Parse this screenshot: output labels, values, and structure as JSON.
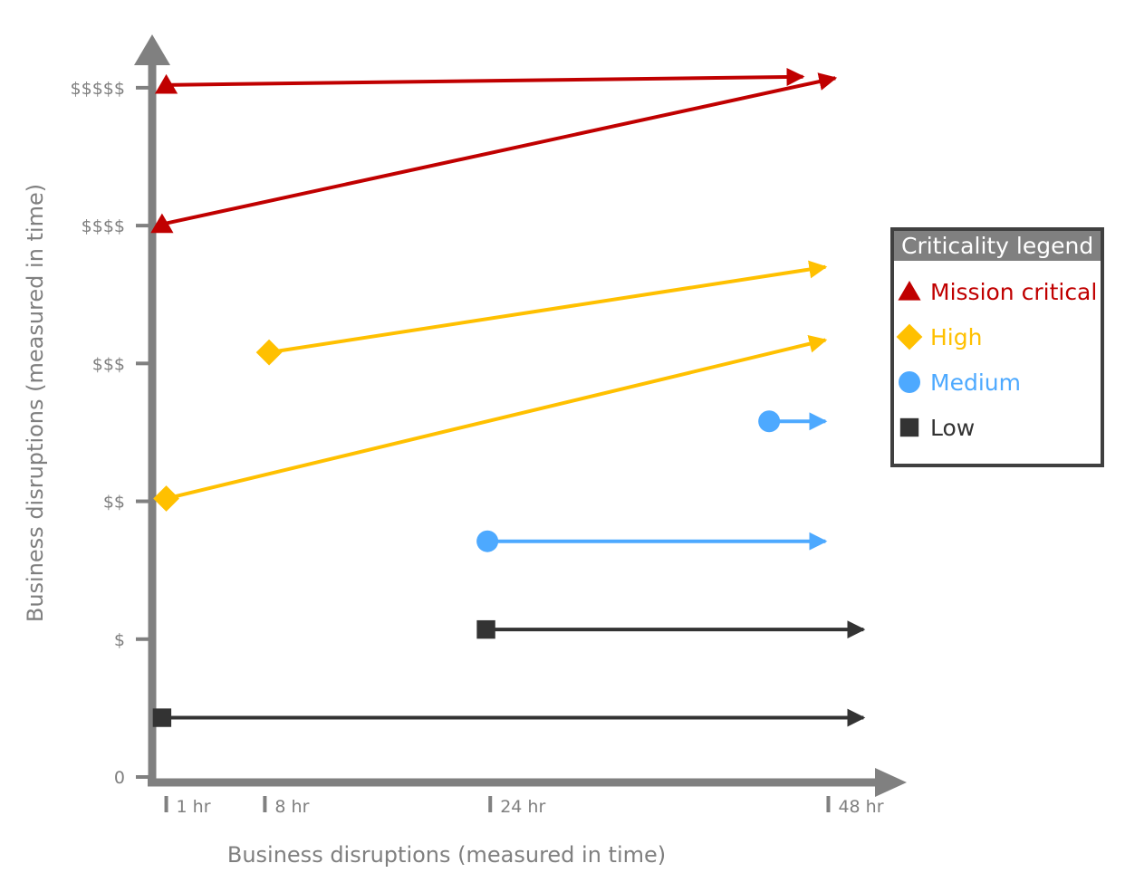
{
  "chart_data": {
    "type": "line",
    "xlabel": "Business disruptions (measured in time)",
    "ylabel": "Business disruptions (measured in time)",
    "x_ticks": [
      {
        "label": "1 hr",
        "value": 1
      },
      {
        "label": "8 hr",
        "value": 8
      },
      {
        "label": "24 hr",
        "value": 24
      },
      {
        "label": "48 hr",
        "value": 48
      }
    ],
    "y_ticks": [
      {
        "label": "0",
        "value": 0
      },
      {
        "label": "$",
        "value": 1
      },
      {
        "label": "$$",
        "value": 2
      },
      {
        "label": "$$$",
        "value": 3
      },
      {
        "label": "$$$$",
        "value": 4
      },
      {
        "label": "$$$$$",
        "value": 5
      }
    ],
    "xlim": [
      0,
      53.5
    ],
    "ylim": [
      0,
      5.4
    ],
    "legend": {
      "title": "Criticality legend",
      "placement": "right",
      "entries": [
        {
          "key": "mission",
          "label": "Mission critical",
          "marker": "triangle",
          "color": "#c00000"
        },
        {
          "key": "high",
          "label": "High",
          "marker": "diamond",
          "color": "#ffc000"
        },
        {
          "key": "medium",
          "label": "Medium",
          "marker": "circle",
          "color": "#4da9ff"
        },
        {
          "key": "low",
          "label": "Low",
          "marker": "square",
          "color": "#333333"
        }
      ]
    },
    "series": [
      {
        "criticality": "mission",
        "start": [
          1,
          5.02
        ],
        "end": [
          46.2,
          5.08
        ]
      },
      {
        "criticality": "mission",
        "start": [
          0.7,
          4.01
        ],
        "end": [
          48.5,
          5.07
        ]
      },
      {
        "criticality": "high",
        "start": [
          8.3,
          3.08
        ],
        "end": [
          47.8,
          3.7
        ]
      },
      {
        "criticality": "high",
        "start": [
          1,
          2.02
        ],
        "end": [
          47.8,
          3.17
        ]
      },
      {
        "criticality": "medium",
        "start": [
          43.8,
          2.58
        ],
        "end": [
          47.8,
          2.58
        ]
      },
      {
        "criticality": "medium",
        "start": [
          23.8,
          1.71
        ],
        "end": [
          47.8,
          1.71
        ]
      },
      {
        "criticality": "low",
        "start": [
          23.7,
          1.07
        ],
        "end": [
          50.5,
          1.07
        ]
      },
      {
        "criticality": "low",
        "start": [
          0.7,
          0.43
        ],
        "end": [
          50.5,
          0.43
        ]
      }
    ]
  },
  "colors": {
    "axis": "#808080",
    "legend_border": "#404040",
    "legend_title_bg": "#808080"
  }
}
